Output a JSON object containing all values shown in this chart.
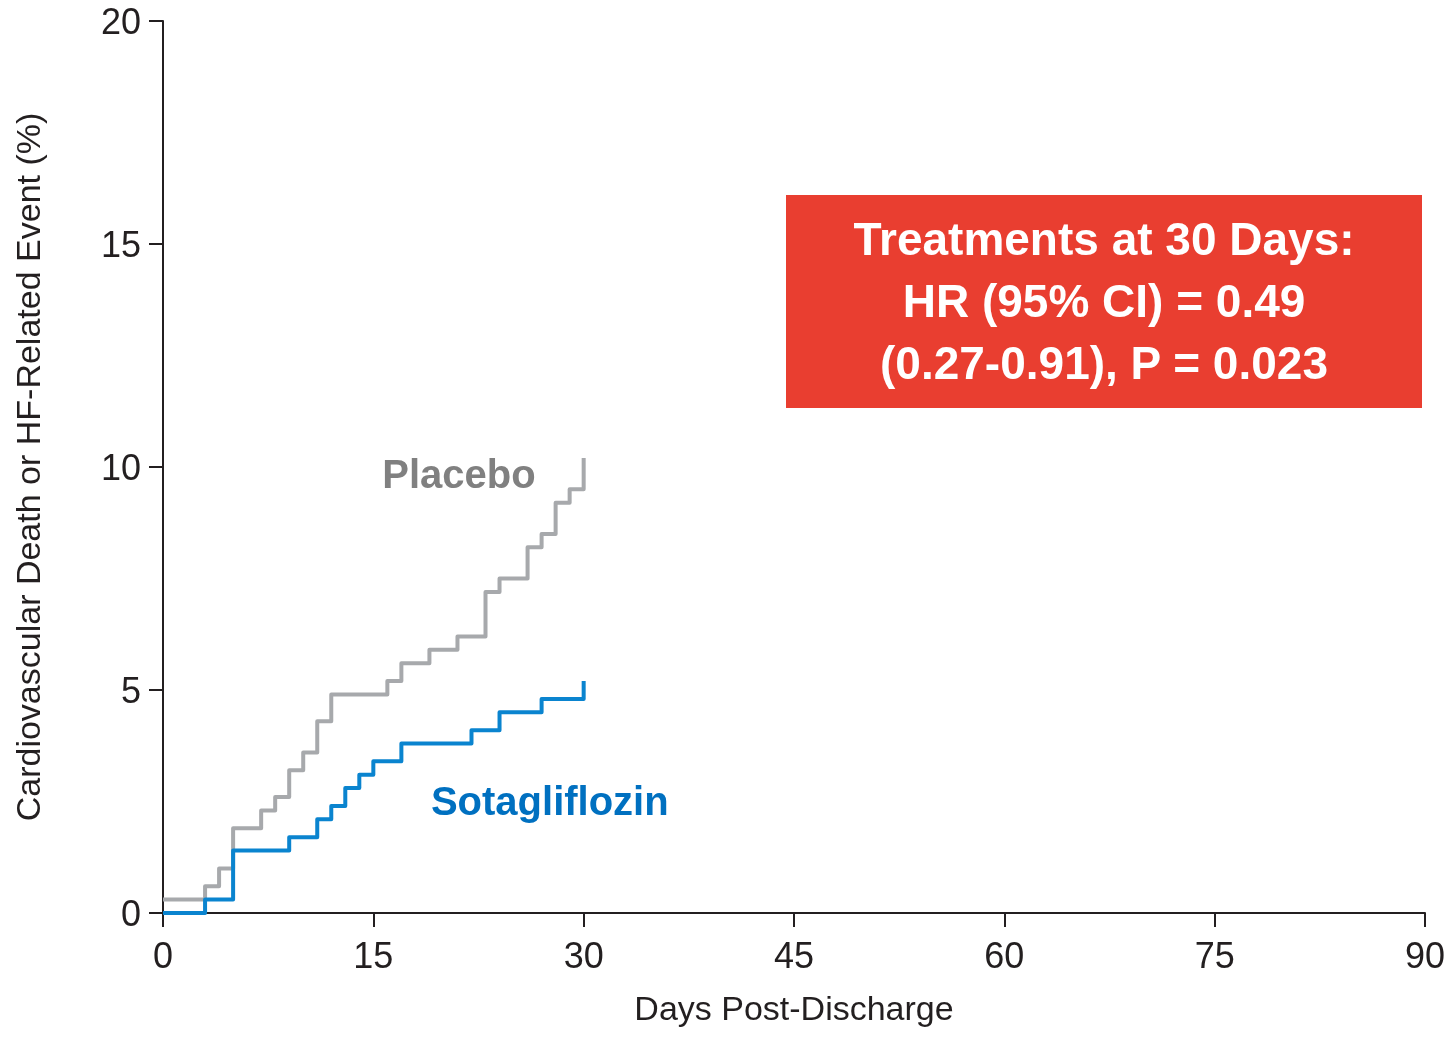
{
  "chart_data": {
    "type": "step",
    "xlabel": "Days Post-Discharge",
    "ylabel": "Cardiovascular Death or HF-Related Event (%)",
    "xlim": [
      0,
      90
    ],
    "xticks": [
      0,
      15,
      30,
      45,
      60,
      75,
      90
    ],
    "ylim": [
      0,
      20
    ],
    "yticks": [
      0,
      5,
      10,
      15,
      20
    ],
    "grid": false,
    "legend": false,
    "marker": "none",
    "line_style": "solid",
    "annotations": [
      "Treatments at 30 Days:\nHR (95% CI) = 0.49\n(0.27-0.91), P = 0.023"
    ],
    "series": [
      {
        "name": "Placebo",
        "color": "#a7a9ac",
        "x": [
          0,
          3,
          4,
          5,
          7,
          8,
          9,
          10,
          11,
          12,
          16,
          17,
          19,
          21,
          23,
          24,
          26,
          27,
          28,
          29,
          30,
          30
        ],
        "values": [
          0.3,
          0.6,
          1.0,
          1.9,
          2.3,
          2.6,
          3.2,
          3.6,
          4.3,
          4.9,
          5.2,
          5.6,
          5.9,
          6.2,
          7.2,
          7.5,
          8.2,
          8.5,
          9.2,
          9.5,
          9.5,
          10.2
        ]
      },
      {
        "name": "Sotagliflozin",
        "color": "#0a84cf",
        "x": [
          0,
          3,
          5,
          9,
          11,
          12,
          13,
          14,
          15,
          17,
          22,
          24,
          27,
          30,
          30
        ],
        "values": [
          0.0,
          0.3,
          1.4,
          1.7,
          2.1,
          2.4,
          2.8,
          3.1,
          3.4,
          3.8,
          4.1,
          4.5,
          4.8,
          4.8,
          5.2
        ]
      }
    ]
  }
}
